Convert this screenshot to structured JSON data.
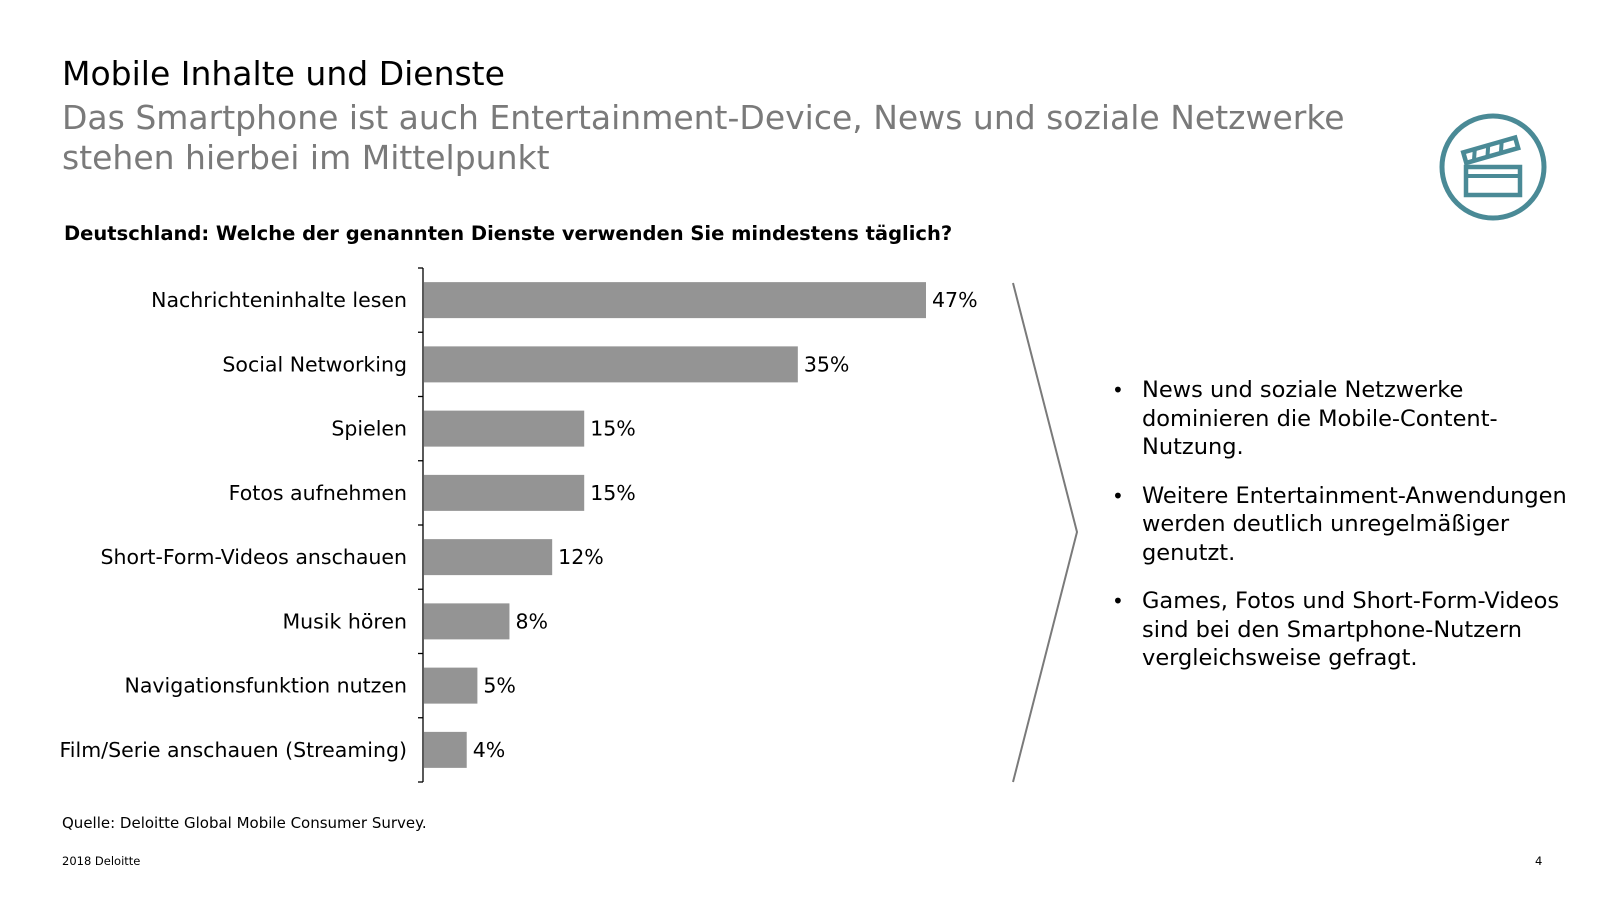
{
  "header": {
    "title": "Mobile Inhalte und Dienste",
    "subtitle": "Das Smartphone ist auch Entertainment-Device, News und soziale Netzwerke stehen hierbei im Mittelpunkt"
  },
  "icon": {
    "name": "clapperboard-icon",
    "color": "#4a8a96"
  },
  "chart_data": {
    "type": "bar",
    "orientation": "horizontal",
    "title": "Deutschland: Welche der genannten Dienste verwenden Sie mindestens täglich?",
    "categories": [
      "Nachrichteninhalte lesen",
      "Social Networking",
      "Spielen",
      "Fotos aufnehmen",
      "Short-Form-Videos anschauen",
      "Musik hören",
      "Navigationsfunktion nutzen",
      "Film/Serie anschauen (Streaming)"
    ],
    "values": [
      47,
      35,
      15,
      15,
      12,
      8,
      5,
      4
    ],
    "value_labels": [
      "47%",
      "35%",
      "15%",
      "15%",
      "12%",
      "8%",
      "5%",
      "4%"
    ],
    "unit": "%",
    "xlim": [
      0,
      50
    ],
    "bar_color": "#949494",
    "grid": false
  },
  "bullets": [
    "News und soziale Netzwerke dominieren die Mobile-Content-Nutzung.",
    "Weitere Entertainment-Anwendungen werden deutlich unregelmäßiger genutzt.",
    "Games, Fotos und Short-Form-Videos sind bei den Smartphone-Nutzern vergleichsweise gefragt."
  ],
  "bullet_symbol": "•",
  "source": "Quelle: Deloitte Global Mobile Consumer Survey.",
  "footer": {
    "left": "2018 Deloitte",
    "page": "4"
  }
}
